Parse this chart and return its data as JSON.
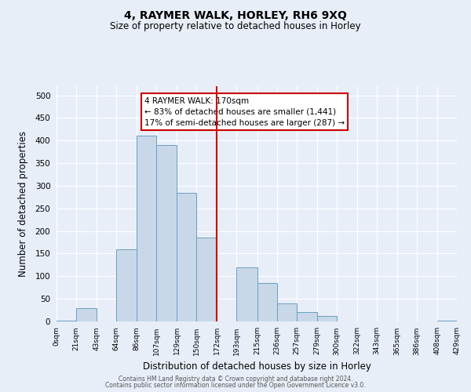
{
  "title": "4, RAYMER WALK, HORLEY, RH6 9XQ",
  "subtitle": "Size of property relative to detached houses in Horley",
  "xlabel": "Distribution of detached houses by size in Horley",
  "ylabel": "Number of detached properties",
  "bin_edges": [
    0,
    21,
    43,
    64,
    86,
    107,
    129,
    150,
    172,
    193,
    215,
    236,
    257,
    279,
    300,
    322,
    343,
    365,
    386,
    408,
    429
  ],
  "bar_heights": [
    1,
    30,
    0,
    160,
    410,
    390,
    285,
    185,
    0,
    120,
    85,
    40,
    20,
    12,
    0,
    0,
    0,
    0,
    0,
    2
  ],
  "bar_color": "#c8d8e8",
  "bar_edge_color": "#6a9fc0",
  "vline_x": 172,
  "vline_color": "#cc0000",
  "annotation_title": "4 RAYMER WALK: 170sqm",
  "annotation_line1": "← 83% of detached houses are smaller (1,441)",
  "annotation_line2": "17% of semi-detached houses are larger (287) →",
  "annotation_box_color": "#cc0000",
  "ylim": [
    0,
    520
  ],
  "yticks": [
    0,
    50,
    100,
    150,
    200,
    250,
    300,
    350,
    400,
    450,
    500
  ],
  "footer1": "Contains HM Land Registry data © Crown copyright and database right 2024.",
  "footer2": "Contains public sector information licensed under the Open Government Licence v3.0.",
  "bg_color": "#e8eef8",
  "plot_bg_color": "#e8eef8"
}
